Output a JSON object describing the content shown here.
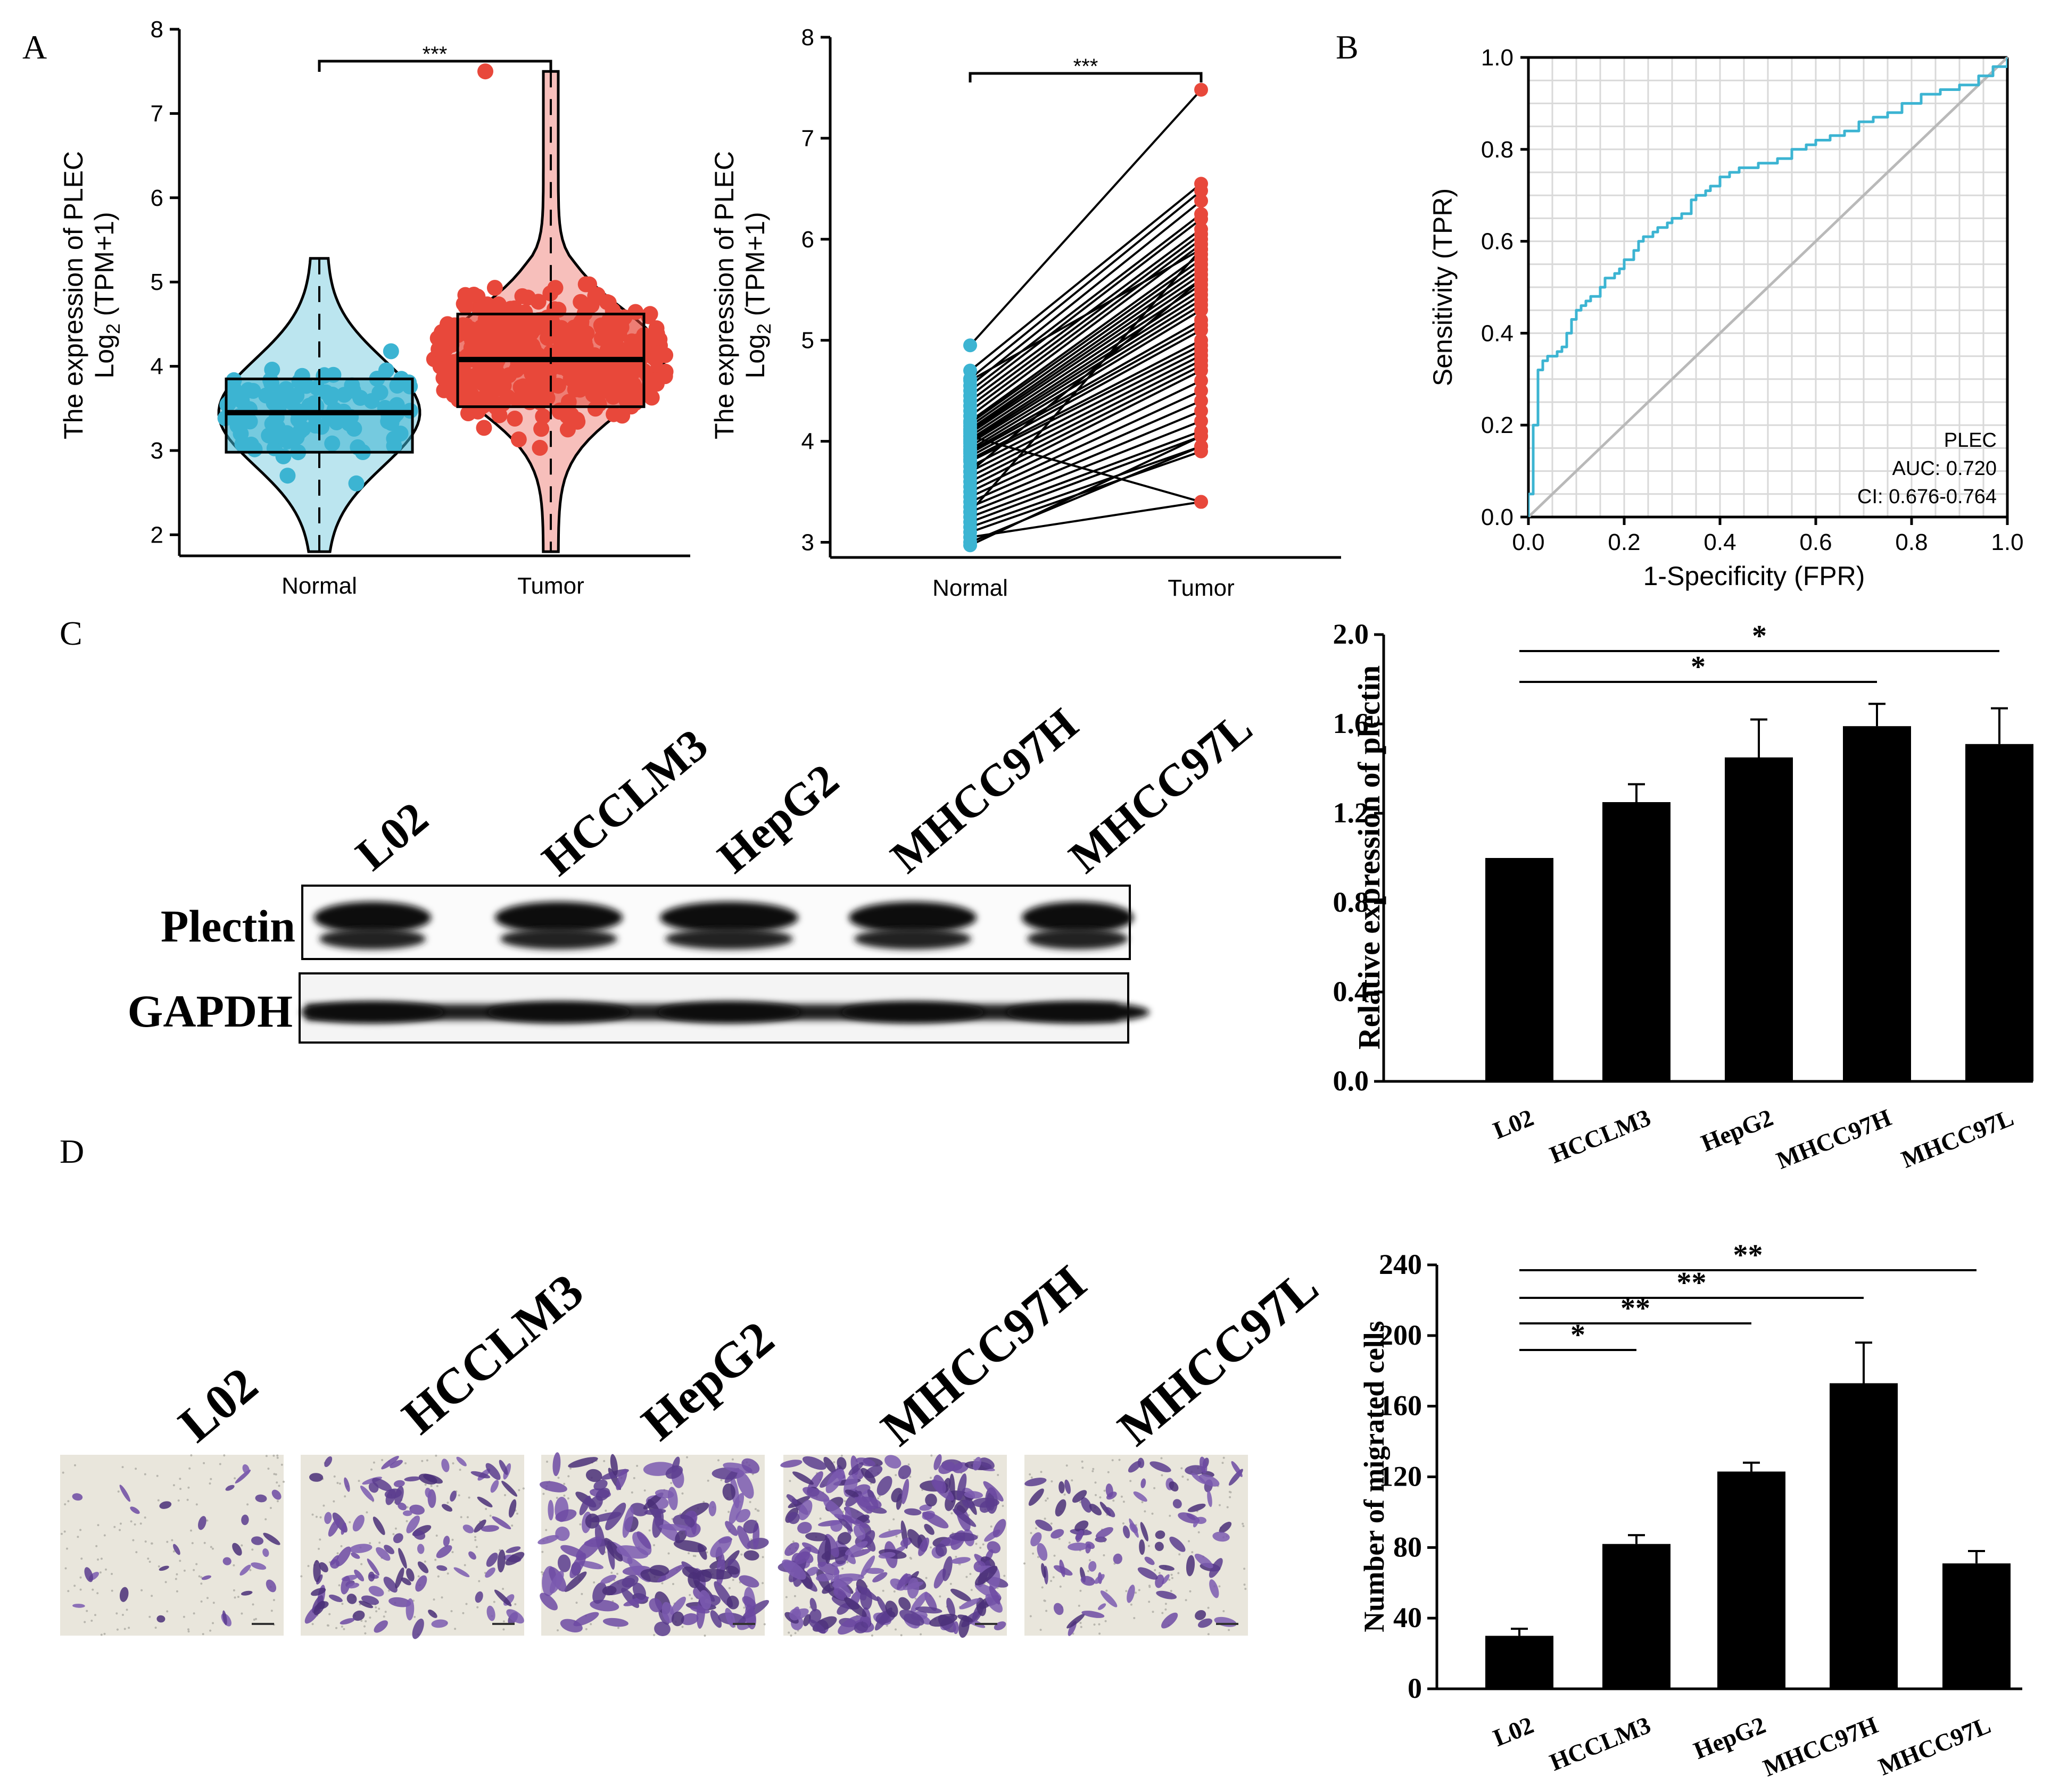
{
  "panel_labels": [
    "A",
    "B",
    "C",
    "D"
  ],
  "colors": {
    "normal": "#3cb4d2",
    "tumor": "#e8483b",
    "roc": "#3cb4d2",
    "bar": "#000000"
  },
  "cell_lines": [
    "L02",
    "HCCLM3",
    "HepG2",
    "MHCC97H",
    "MHCC97L"
  ],
  "blot": {
    "rows": [
      "Plectin",
      "GAPDH"
    ]
  },
  "chart_data": [
    {
      "id": "A1",
      "type": "box-violin-scatter",
      "categories": [
        "Normal",
        "Tumor"
      ],
      "ylabel_line1": "The expression of PLEC",
      "ylabel_line2_pre": "Log",
      "ylabel_sub": "2",
      "ylabel_line2_post": " (TPM+1)",
      "ylim": [
        1.75,
        8
      ],
      "yticks": [
        "2",
        "3",
        "4",
        "5",
        "6",
        "7",
        "8"
      ],
      "significance": "***",
      "series": [
        {
          "name": "Normal",
          "q1": 2.98,
          "median": 3.45,
          "q3": 3.85,
          "min": 1.8,
          "max": 5.28
        },
        {
          "name": "Tumor",
          "q1": 3.52,
          "median": 4.08,
          "q3": 4.62,
          "min": 1.8,
          "max": 7.5
        }
      ]
    },
    {
      "id": "A2",
      "type": "paired-scatter",
      "categories": [
        "Normal",
        "Tumor"
      ],
      "ylabel_line1": "The expression of PLEC",
      "ylabel_line2_pre": "Log",
      "ylabel_sub": "2",
      "ylabel_line2_post": " (TPM+1)",
      "ylim": [
        2.85,
        8
      ],
      "yticks": [
        "3",
        "4",
        "5",
        "6",
        "7",
        "8"
      ],
      "significance": "***",
      "pairs": [
        [
          4.95,
          7.48
        ],
        [
          4.7,
          6.55
        ],
        [
          4.62,
          6.48
        ],
        [
          4.55,
          6.38
        ],
        [
          4.5,
          6.25
        ],
        [
          4.45,
          6.2
        ],
        [
          4.4,
          6.1
        ],
        [
          4.35,
          6.05
        ],
        [
          4.3,
          6.0
        ],
        [
          4.25,
          5.95
        ],
        [
          4.2,
          5.85
        ],
        [
          4.18,
          5.8
        ],
        [
          4.15,
          5.75
        ],
        [
          4.12,
          5.7
        ],
        [
          4.1,
          5.65
        ],
        [
          4.08,
          5.6
        ],
        [
          4.05,
          5.55
        ],
        [
          4.02,
          5.5
        ],
        [
          4.0,
          5.45
        ],
        [
          3.98,
          5.4
        ],
        [
          3.95,
          5.35
        ],
        [
          3.92,
          5.3
        ],
        [
          3.9,
          5.2
        ],
        [
          3.88,
          5.15
        ],
        [
          3.85,
          5.1
        ],
        [
          3.82,
          5.0
        ],
        [
          3.8,
          4.95
        ],
        [
          3.75,
          4.9
        ],
        [
          3.7,
          4.85
        ],
        [
          3.65,
          4.8
        ],
        [
          3.6,
          4.75
        ],
        [
          3.55,
          4.7
        ],
        [
          3.5,
          4.6
        ],
        [
          3.45,
          4.5
        ],
        [
          3.4,
          4.4
        ],
        [
          3.35,
          4.3
        ],
        [
          3.3,
          4.2
        ],
        [
          3.25,
          4.1
        ],
        [
          3.2,
          4.05
        ],
        [
          3.15,
          3.95
        ],
        [
          3.1,
          3.9
        ],
        [
          3.05,
          3.4
        ],
        [
          3.0,
          3.95
        ],
        [
          2.97,
          4.05
        ],
        [
          4.6,
          5.9
        ],
        [
          4.05,
          3.4
        ],
        [
          3.7,
          5.6
        ],
        [
          3.3,
          5.9
        ]
      ]
    },
    {
      "id": "B",
      "type": "line",
      "xlabel": "1-Specificity (FPR)",
      "ylabel": "Sensitivity (TPR)",
      "xlim": [
        0,
        1
      ],
      "ylim": [
        0,
        1
      ],
      "xticks": [
        "0.0",
        "0.2",
        "0.4",
        "0.6",
        "0.8",
        "1.0"
      ],
      "yticks": [
        "0.0",
        "0.2",
        "0.4",
        "0.6",
        "0.8",
        "1.0"
      ],
      "legend": {
        "gene": "PLEC",
        "auc": "AUC: 0.720",
        "ci": "CI: 0.676-0.764"
      },
      "x": [
        0,
        0,
        0.01,
        0.01,
        0.02,
        0.02,
        0.03,
        0.04,
        0.06,
        0.07,
        0.08,
        0.09,
        0.1,
        0.11,
        0.12,
        0.13,
        0.15,
        0.16,
        0.18,
        0.19,
        0.2,
        0.22,
        0.23,
        0.24,
        0.26,
        0.27,
        0.29,
        0.3,
        0.32,
        0.34,
        0.35,
        0.37,
        0.38,
        0.4,
        0.42,
        0.44,
        0.46,
        0.48,
        0.5,
        0.52,
        0.55,
        0.58,
        0.6,
        0.63,
        0.66,
        0.69,
        0.72,
        0.75,
        0.78,
        0.82,
        0.86,
        0.9,
        0.94,
        0.97,
        1.0
      ],
      "y": [
        0,
        0.05,
        0.1,
        0.2,
        0.27,
        0.32,
        0.34,
        0.35,
        0.36,
        0.37,
        0.4,
        0.43,
        0.45,
        0.46,
        0.47,
        0.48,
        0.5,
        0.52,
        0.53,
        0.54,
        0.56,
        0.58,
        0.6,
        0.61,
        0.62,
        0.63,
        0.64,
        0.65,
        0.66,
        0.69,
        0.7,
        0.71,
        0.72,
        0.74,
        0.75,
        0.76,
        0.76,
        0.77,
        0.77,
        0.78,
        0.8,
        0.81,
        0.82,
        0.83,
        0.84,
        0.86,
        0.87,
        0.88,
        0.9,
        0.92,
        0.93,
        0.94,
        0.96,
        0.98,
        1.0
      ]
    },
    {
      "id": "C",
      "type": "bar",
      "categories": [
        "L02",
        "HCCLM3",
        "HepG2",
        "MHCC97H",
        "MHCC97L"
      ],
      "values": [
        1.0,
        1.25,
        1.45,
        1.59,
        1.51
      ],
      "errors": [
        0,
        0.08,
        0.17,
        0.1,
        0.16
      ],
      "ylabel": "Relative expression of plectin",
      "ylim": [
        0,
        2
      ],
      "yticks": [
        "0.0",
        "0.4",
        "0.8",
        "1.2",
        "1.6",
        "2.0"
      ],
      "significance": [
        {
          "from": 0,
          "to": 4,
          "label": "*"
        },
        {
          "from": 0,
          "to": 3,
          "label": "*"
        }
      ]
    },
    {
      "id": "D",
      "type": "bar",
      "categories": [
        "L02",
        "HCCLM3",
        "HepG2",
        "MHCC97H",
        "MHCC97L"
      ],
      "values": [
        30,
        82,
        123,
        173,
        71
      ],
      "errors": [
        4,
        5,
        5,
        23,
        7
      ],
      "ylabel": "Number of migrated cells",
      "ylim": [
        0,
        240
      ],
      "yticks": [
        "0",
        "40",
        "80",
        "120",
        "160",
        "200",
        "240"
      ],
      "significance": [
        {
          "from": 0,
          "to": 4,
          "label": "**"
        },
        {
          "from": 0,
          "to": 3,
          "label": "**"
        },
        {
          "from": 0,
          "to": 2,
          "label": "**"
        },
        {
          "from": 0,
          "to": 1,
          "label": "*"
        }
      ]
    }
  ]
}
